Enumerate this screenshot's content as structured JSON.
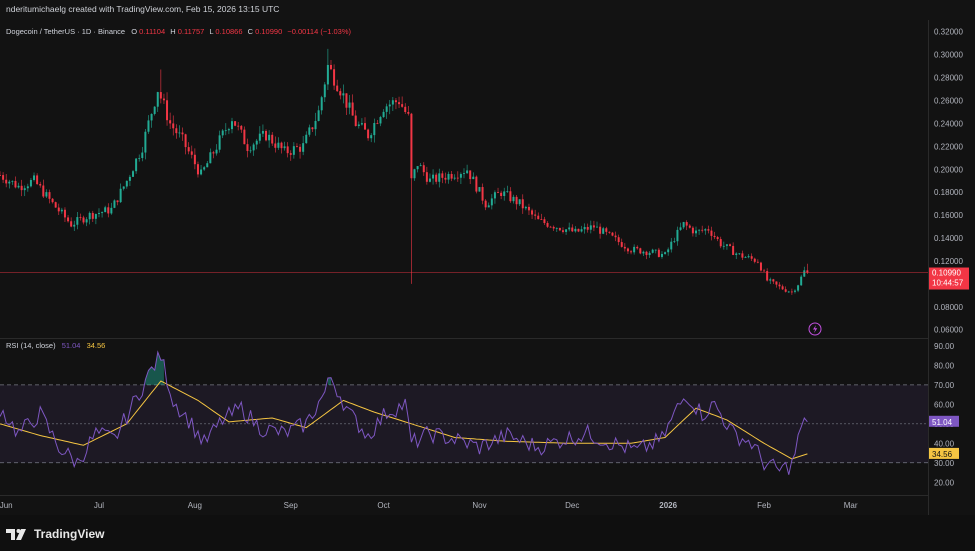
{
  "header": {
    "caption": "nderitumichaelg created with TradingView.com, Feb 15, 2026 13:15 UTC"
  },
  "footer": {
    "brand": "TradingView"
  },
  "colors": {
    "up": "#22ab94",
    "down": "#f23645",
    "rsi": "#7e57c2",
    "rsi_ma": "#f5c542",
    "price_line": "#f23645"
  },
  "chart_data": [
    {
      "type": "candlestick",
      "legend": {
        "symbol": "Dogecoin / TetherUS · 1D · Binance",
        "o_label": "O",
        "o": "0.11104",
        "h_label": "H",
        "h": "0.11757",
        "l_label": "L",
        "l": "0.10866",
        "c_label": "C",
        "c": "0.10990",
        "change": "−0.00114 (−1.03%)"
      },
      "x_ticks": [
        {
          "label": "Jun",
          "date": "2025-06-01"
        },
        {
          "label": "Jul",
          "date": "2025-07-01"
        },
        {
          "label": "Aug",
          "date": "2025-08-01"
        },
        {
          "label": "Sep",
          "date": "2025-09-01"
        },
        {
          "label": "Oct",
          "date": "2025-10-01"
        },
        {
          "label": "Nov",
          "date": "2025-11-01"
        },
        {
          "label": "Dec",
          "date": "2025-12-01"
        },
        {
          "label": "2026",
          "date": "2026-01-01"
        },
        {
          "label": "Feb",
          "date": "2026-02-01"
        },
        {
          "label": "Mar",
          "date": "2026-03-01"
        }
      ],
      "x_range": [
        "2025-05-30",
        "2026-03-26"
      ],
      "y_ticks": [
        "0.32000",
        "0.30000",
        "0.28000",
        "0.26000",
        "0.24000",
        "0.22000",
        "0.20000",
        "0.18000",
        "0.16000",
        "0.14000",
        "0.12000",
        "0.08000",
        "0.06000"
      ],
      "y_range": [
        0.058,
        0.325
      ],
      "last_price": {
        "value": 0.1099,
        "label": "0.10990",
        "countdown": "10:44:57"
      },
      "price_path": [
        {
          "date": "2025-05-30",
          "close": 0.195
        },
        {
          "date": "2025-06-05",
          "close": 0.185
        },
        {
          "date": "2025-06-10",
          "close": 0.19
        },
        {
          "date": "2025-06-16",
          "close": 0.17
        },
        {
          "date": "2025-06-22",
          "close": 0.152
        },
        {
          "date": "2025-06-28",
          "close": 0.16
        },
        {
          "date": "2025-07-05",
          "close": 0.165
        },
        {
          "date": "2025-07-10",
          "close": 0.19
        },
        {
          "date": "2025-07-15",
          "close": 0.22
        },
        {
          "date": "2025-07-20",
          "close": 0.27
        },
        {
          "date": "2025-07-24",
          "close": 0.24
        },
        {
          "date": "2025-07-28",
          "close": 0.225
        },
        {
          "date": "2025-08-03",
          "close": 0.195
        },
        {
          "date": "2025-08-08",
          "close": 0.22
        },
        {
          "date": "2025-08-13",
          "close": 0.245
        },
        {
          "date": "2025-08-18",
          "close": 0.22
        },
        {
          "date": "2025-08-24",
          "close": 0.23
        },
        {
          "date": "2025-08-30",
          "close": 0.215
        },
        {
          "date": "2025-09-05",
          "close": 0.22
        },
        {
          "date": "2025-09-10",
          "close": 0.25
        },
        {
          "date": "2025-09-13",
          "close": 0.29
        },
        {
          "date": "2025-09-17",
          "close": 0.27
        },
        {
          "date": "2025-09-22",
          "close": 0.24
        },
        {
          "date": "2025-09-26",
          "close": 0.23
        },
        {
          "date": "2025-10-01",
          "close": 0.255
        },
        {
          "date": "2025-10-06",
          "close": 0.26
        },
        {
          "date": "2025-10-09",
          "close": 0.245
        },
        {
          "date": "2025-10-10",
          "close": 0.19
        },
        {
          "date": "2025-10-12",
          "close": 0.205
        },
        {
          "date": "2025-10-16",
          "close": 0.19
        },
        {
          "date": "2025-10-22",
          "close": 0.195
        },
        {
          "date": "2025-10-28",
          "close": 0.2
        },
        {
          "date": "2025-11-03",
          "close": 0.17
        },
        {
          "date": "2025-11-08",
          "close": 0.18
        },
        {
          "date": "2025-11-14",
          "close": 0.17
        },
        {
          "date": "2025-11-20",
          "close": 0.155
        },
        {
          "date": "2025-11-26",
          "close": 0.15
        },
        {
          "date": "2025-12-02",
          "close": 0.145
        },
        {
          "date": "2025-12-08",
          "close": 0.15
        },
        {
          "date": "2025-12-14",
          "close": 0.14
        },
        {
          "date": "2025-12-20",
          "close": 0.13
        },
        {
          "date": "2025-12-26",
          "close": 0.128
        },
        {
          "date": "2025-12-31",
          "close": 0.125
        },
        {
          "date": "2026-01-03",
          "close": 0.14
        },
        {
          "date": "2026-01-06",
          "close": 0.152
        },
        {
          "date": "2026-01-10",
          "close": 0.145
        },
        {
          "date": "2026-01-14",
          "close": 0.148
        },
        {
          "date": "2026-01-18",
          "close": 0.135
        },
        {
          "date": "2026-01-24",
          "close": 0.125
        },
        {
          "date": "2026-01-30",
          "close": 0.12
        },
        {
          "date": "2026-02-02",
          "close": 0.103
        },
        {
          "date": "2026-02-06",
          "close": 0.097
        },
        {
          "date": "2026-02-10",
          "close": 0.093
        },
        {
          "date": "2026-02-12",
          "close": 0.1
        },
        {
          "date": "2026-02-14",
          "close": 0.111
        },
        {
          "date": "2026-02-15",
          "close": 0.1099
        }
      ]
    },
    {
      "type": "line",
      "legend": {
        "name": "RSI (14, close)",
        "rsi": "51.04",
        "rsi_ma": "34.56"
      },
      "y_ticks": [
        "90.00",
        "80.00",
        "70.00",
        "60.00",
        "50.00",
        "40.00",
        "30.00",
        "20.00"
      ],
      "y_range": [
        15,
        92
      ],
      "bands": {
        "upper": 70,
        "middle": 50,
        "lower": 30
      },
      "last_values": {
        "rsi": "51.04",
        "rsi_ma": "34.56"
      },
      "rsi_path": [
        {
          "date": "2025-05-30",
          "v": 58
        },
        {
          "date": "2025-06-05",
          "v": 45
        },
        {
          "date": "2025-06-12",
          "v": 55
        },
        {
          "date": "2025-06-18",
          "v": 38
        },
        {
          "date": "2025-06-24",
          "v": 30
        },
        {
          "date": "2025-06-30",
          "v": 45
        },
        {
          "date": "2025-07-06",
          "v": 42
        },
        {
          "date": "2025-07-12",
          "v": 60
        },
        {
          "date": "2025-07-18",
          "v": 78
        },
        {
          "date": "2025-07-21",
          "v": 85
        },
        {
          "date": "2025-07-25",
          "v": 62
        },
        {
          "date": "2025-07-30",
          "v": 52
        },
        {
          "date": "2025-08-04",
          "v": 40
        },
        {
          "date": "2025-08-10",
          "v": 52
        },
        {
          "date": "2025-08-16",
          "v": 58
        },
        {
          "date": "2025-08-22",
          "v": 48
        },
        {
          "date": "2025-08-30",
          "v": 45
        },
        {
          "date": "2025-09-06",
          "v": 50
        },
        {
          "date": "2025-09-12",
          "v": 66
        },
        {
          "date": "2025-09-14",
          "v": 74
        },
        {
          "date": "2025-09-20",
          "v": 55
        },
        {
          "date": "2025-09-26",
          "v": 44
        },
        {
          "date": "2025-10-02",
          "v": 56
        },
        {
          "date": "2025-10-08",
          "v": 60
        },
        {
          "date": "2025-10-10",
          "v": 40
        },
        {
          "date": "2025-10-16",
          "v": 45
        },
        {
          "date": "2025-10-24",
          "v": 42
        },
        {
          "date": "2025-11-01",
          "v": 38
        },
        {
          "date": "2025-11-10",
          "v": 44
        },
        {
          "date": "2025-11-20",
          "v": 38
        },
        {
          "date": "2025-11-28",
          "v": 42
        },
        {
          "date": "2025-12-06",
          "v": 45
        },
        {
          "date": "2025-12-14",
          "v": 40
        },
        {
          "date": "2025-12-22",
          "v": 36
        },
        {
          "date": "2025-12-30",
          "v": 42
        },
        {
          "date": "2026-01-04",
          "v": 58
        },
        {
          "date": "2026-01-07",
          "v": 65
        },
        {
          "date": "2026-01-12",
          "v": 55
        },
        {
          "date": "2026-01-16",
          "v": 60
        },
        {
          "date": "2026-01-22",
          "v": 45
        },
        {
          "date": "2026-01-28",
          "v": 40
        },
        {
          "date": "2026-02-01",
          "v": 30
        },
        {
          "date": "2026-02-06",
          "v": 26
        },
        {
          "date": "2026-02-10",
          "v": 29
        },
        {
          "date": "2026-02-13",
          "v": 48
        },
        {
          "date": "2026-02-15",
          "v": 51.04
        }
      ],
      "rsi_ma_path": [
        {
          "date": "2025-05-30",
          "v": 50
        },
        {
          "date": "2025-06-12",
          "v": 44
        },
        {
          "date": "2025-06-26",
          "v": 39
        },
        {
          "date": "2025-07-10",
          "v": 50
        },
        {
          "date": "2025-07-21",
          "v": 72
        },
        {
          "date": "2025-08-02",
          "v": 62
        },
        {
          "date": "2025-08-12",
          "v": 51
        },
        {
          "date": "2025-08-26",
          "v": 53
        },
        {
          "date": "2025-09-06",
          "v": 48
        },
        {
          "date": "2025-09-18",
          "v": 62
        },
        {
          "date": "2025-09-28",
          "v": 56
        },
        {
          "date": "2025-10-10",
          "v": 50
        },
        {
          "date": "2025-10-24",
          "v": 43
        },
        {
          "date": "2025-11-10",
          "v": 41
        },
        {
          "date": "2025-11-30",
          "v": 40
        },
        {
          "date": "2025-12-20",
          "v": 40
        },
        {
          "date": "2025-12-31",
          "v": 43
        },
        {
          "date": "2026-01-10",
          "v": 58
        },
        {
          "date": "2026-01-20",
          "v": 52
        },
        {
          "date": "2026-02-01",
          "v": 40
        },
        {
          "date": "2026-02-10",
          "v": 32
        },
        {
          "date": "2026-02-15",
          "v": 34.56
        }
      ]
    }
  ]
}
